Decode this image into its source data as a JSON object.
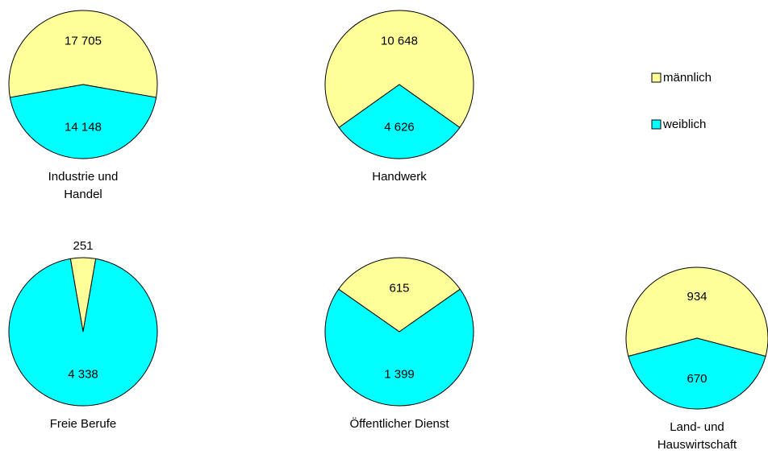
{
  "chart_data": [
    {
      "type": "pie",
      "title": "Industrie und Handel",
      "categories": [
        "männlich",
        "weiblich"
      ],
      "values": [
        17705,
        14148
      ],
      "value_labels": [
        "17 705",
        "14 148"
      ],
      "colors": [
        "#ffff99",
        "#00ffff"
      ]
    },
    {
      "type": "pie",
      "title": "Handwerk",
      "categories": [
        "männlich",
        "weiblich"
      ],
      "values": [
        10648,
        4626
      ],
      "value_labels": [
        "10 648",
        "4 626"
      ],
      "colors": [
        "#ffff99",
        "#00ffff"
      ]
    },
    {
      "type": "pie",
      "title": "Freie Berufe",
      "categories": [
        "männlich",
        "weiblich"
      ],
      "values": [
        251,
        4338
      ],
      "value_labels": [
        "251",
        "4 338"
      ],
      "colors": [
        "#ffff99",
        "#00ffff"
      ]
    },
    {
      "type": "pie",
      "title": "Öffentlicher Dienst",
      "categories": [
        "männlich",
        "weiblich"
      ],
      "values": [
        615,
        1399
      ],
      "value_labels": [
        "615",
        "1 399"
      ],
      "colors": [
        "#ffff99",
        "#00ffff"
      ]
    },
    {
      "type": "pie",
      "title": "Land- und Hauswirtschaft",
      "categories": [
        "männlich",
        "weiblich"
      ],
      "values": [
        934,
        670
      ],
      "value_labels": [
        "934",
        "670"
      ],
      "colors": [
        "#ffff99",
        "#00ffff"
      ]
    }
  ]
}
